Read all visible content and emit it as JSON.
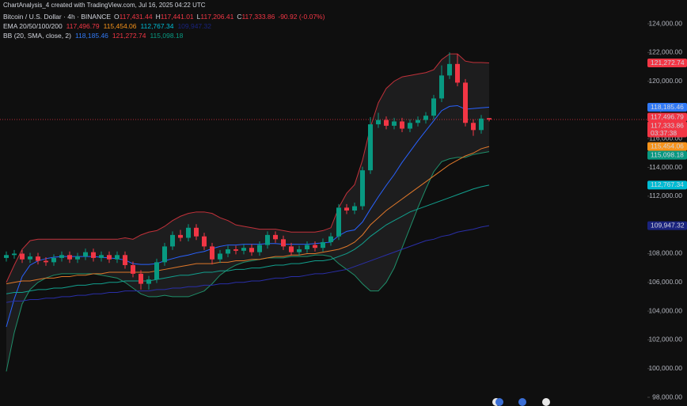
{
  "chart_data": {
    "type": "candlestick",
    "caption": "ChartAnalysis_4 created with TradingView.com, Jul 16, 2025 04:22 UTC",
    "title": "Bitcoin / U.S. Dollar · 4h · BINANCE",
    "ohlc_legend": [
      {
        "key": "O",
        "value": "117,431.44"
      },
      {
        "key": "H",
        "value": "117,441.01"
      },
      {
        "key": "L",
        "value": "117,206.41"
      },
      {
        "key": "C",
        "value": "117,333.86"
      }
    ],
    "change": "-90.92 (-0.07%)",
    "ema_label": "EMA 20/50/100/200",
    "bb_label": "BB (20, SMA, close, 2)",
    "up_color": "#089981",
    "down_color": "#f23645",
    "open": [
      107700,
      107900,
      108000,
      107600,
      107800,
      107500,
      107400,
      107700,
      107900,
      107600,
      107800,
      108100,
      107700,
      107900,
      107600,
      107900,
      107200,
      106600,
      105900,
      106200,
      107400,
      108500,
      109300,
      109100,
      109800,
      109200,
      108500,
      107600,
      108000,
      108300,
      108200,
      108400,
      108100,
      108600,
      109300,
      109000,
      108500,
      108100,
      108300,
      108600,
      108400,
      108800,
      109200,
      111200,
      111000,
      111300,
      113800,
      117000,
      117300,
      116900,
      117200,
      116700,
      117100,
      117300,
      117600,
      118800,
      120400,
      121200,
      119900,
      117100,
      116600,
      117431.44
    ],
    "high": [
      108150,
      108250,
      108250,
      108050,
      108050,
      107750,
      107950,
      108150,
      108150,
      108050,
      108350,
      108350,
      108150,
      108150,
      108150,
      108150,
      107450,
      106850,
      106450,
      107650,
      108750,
      109550,
      109650,
      110050,
      110050,
      109450,
      108750,
      108250,
      108550,
      108550,
      108650,
      108650,
      108850,
      109550,
      109550,
      109250,
      108750,
      108550,
      108850,
      108850,
      109050,
      109450,
      111450,
      111450,
      111550,
      114050,
      117500,
      117800,
      117550,
      117450,
      117450,
      117350,
      117550,
      117850,
      119050,
      121100,
      122000,
      121900,
      120150,
      117350,
      117650,
      117441.01
    ],
    "low": [
      107450,
      107650,
      107350,
      107350,
      107250,
      107150,
      107150,
      107450,
      107350,
      107350,
      107550,
      107450,
      107450,
      107350,
      107350,
      106950,
      106350,
      105500,
      105500,
      105950,
      107150,
      108250,
      108850,
      108850,
      108950,
      108250,
      107250,
      107350,
      107750,
      107950,
      107950,
      107850,
      107850,
      108350,
      108750,
      108250,
      107850,
      107850,
      108050,
      108150,
      108150,
      108550,
      108950,
      110750,
      110750,
      111050,
      113550,
      116750,
      116650,
      116650,
      116450,
      116450,
      116850,
      117050,
      117350,
      118550,
      120150,
      119650,
      116850,
      116200,
      116350,
      117206.41
    ],
    "close": [
      107900,
      108000,
      107600,
      107800,
      107500,
      107400,
      107700,
      107900,
      107600,
      107800,
      108100,
      107700,
      107900,
      107600,
      107900,
      107200,
      106600,
      105900,
      106200,
      107400,
      108500,
      109300,
      109100,
      109800,
      109200,
      108500,
      107600,
      108000,
      108300,
      108200,
      108400,
      108100,
      108600,
      109300,
      109000,
      108500,
      108100,
      108300,
      108600,
      108400,
      108800,
      109200,
      111200,
      111000,
      111300,
      113800,
      117000,
      117300,
      116900,
      117200,
      116700,
      117100,
      117300,
      117600,
      118800,
      120400,
      121200,
      119900,
      117100,
      116600,
      117400,
      117333.86
    ],
    "overlays": [
      {
        "color": "#c2313a",
        "values": [
          106000,
          107200,
          108300,
          108900,
          109000,
          109000,
          109000,
          109000,
          109000,
          109000,
          109000,
          109000,
          109000,
          109000,
          109000,
          109100,
          109000,
          109300,
          109500,
          109600,
          109900,
          110300,
          110600,
          110800,
          110900,
          110900,
          110800,
          110500,
          110300,
          110000,
          109900,
          109800,
          109700,
          109700,
          109700,
          109600,
          109500,
          109500,
          109500,
          109500,
          109600,
          109800,
          111200,
          112200,
          112800,
          114500,
          116800,
          118500,
          119500,
          120000,
          120300,
          120400,
          120500,
          120600,
          120800,
          121500,
          121900,
          121900,
          121400,
          121300,
          121300,
          121272.74
        ]
      },
      {
        "color": "#2962ff",
        "values": [
          102900,
          104850,
          106400,
          107200,
          107500,
          107650,
          107750,
          107800,
          107800,
          107800,
          107800,
          107800,
          107750,
          107700,
          107650,
          107550,
          107300,
          107250,
          107250,
          107300,
          107500,
          107650,
          107800,
          107900,
          108050,
          108150,
          108350,
          108500,
          108600,
          108600,
          108650,
          108650,
          108650,
          108700,
          108700,
          108650,
          108650,
          108650,
          108650,
          108700,
          108750,
          108800,
          109250,
          109550,
          109650,
          110200,
          111100,
          111950,
          112750,
          113500,
          114350,
          115100,
          115850,
          116550,
          117250,
          117950,
          118250,
          118300,
          118050,
          118100,
          118150,
          118185.46
        ]
      },
      {
        "color": "#1f8f6a",
        "values": [
          99800,
          102500,
          104500,
          105500,
          106000,
          106300,
          106500,
          106600,
          106600,
          106600,
          106600,
          106600,
          106500,
          106400,
          106300,
          106000,
          105600,
          105200,
          105000,
          105000,
          105100,
          105000,
          105000,
          105000,
          105200,
          105400,
          105900,
          106500,
          106900,
          107200,
          107400,
          107500,
          107600,
          107700,
          107700,
          107700,
          107800,
          107800,
          107800,
          107900,
          107900,
          107800,
          107300,
          106900,
          106500,
          105900,
          105400,
          105400,
          106000,
          107000,
          108400,
          109800,
          111200,
          112500,
          113700,
          114400,
          114600,
          114700,
          114700,
          114900,
          115000,
          115098.18
        ]
      },
      {
        "color": "#e0782a",
        "values": [
          105900,
          106000,
          106100,
          106100,
          106200,
          106300,
          106300,
          106400,
          106400,
          106500,
          106500,
          106600,
          106600,
          106700,
          106700,
          106700,
          106700,
          106700,
          106700,
          106800,
          106900,
          107000,
          107100,
          107200,
          107300,
          107300,
          107300,
          107400,
          107400,
          107500,
          107500,
          107600,
          107600,
          107700,
          107800,
          107800,
          107900,
          107900,
          108000,
          108000,
          108100,
          108200,
          108300,
          108500,
          108800,
          109300,
          110000,
          110500,
          111000,
          111400,
          111800,
          112200,
          112600,
          113000,
          113400,
          113800,
          114200,
          114500,
          114800,
          115000,
          115300,
          115454.06
        ]
      },
      {
        "color": "#12a08e",
        "values": [
          105200,
          105300,
          105300,
          105400,
          105500,
          105500,
          105600,
          105600,
          105700,
          105800,
          105800,
          105900,
          105900,
          106000,
          106000,
          106100,
          106100,
          106100,
          106100,
          106200,
          106300,
          106400,
          106500,
          106500,
          106600,
          106700,
          106700,
          106800,
          106800,
          106900,
          106900,
          107000,
          107000,
          107100,
          107200,
          107200,
          107300,
          107300,
          107400,
          107500,
          107500,
          107600,
          107800,
          108000,
          108300,
          108700,
          109200,
          109600,
          110000,
          110300,
          110600,
          110900,
          111100,
          111300,
          111500,
          111700,
          111900,
          112100,
          112300,
          112500,
          112650,
          112767.34
        ]
      },
      {
        "color": "#2a2fa8",
        "values": [
          104600,
          104700,
          104700,
          104800,
          104800,
          104900,
          104900,
          105000,
          105000,
          105100,
          105100,
          105200,
          105200,
          105300,
          105300,
          105400,
          105400,
          105400,
          105400,
          105500,
          105500,
          105600,
          105600,
          105700,
          105700,
          105800,
          105800,
          105900,
          105900,
          106000,
          106000,
          106100,
          106100,
          106200,
          106300,
          106300,
          106400,
          106400,
          106500,
          106600,
          106600,
          106700,
          106800,
          106900,
          107100,
          107300,
          107500,
          107700,
          107900,
          108100,
          108300,
          108500,
          108700,
          108900,
          109000,
          109200,
          109300,
          109500,
          109600,
          109700,
          109850,
          109947.32
        ]
      }
    ],
    "ylim": [
      98000,
      124000
    ],
    "yticks": [
      {
        "value": 98000,
        "label": "98,000.00"
      },
      {
        "value": 100000,
        "label": "100,000.00"
      },
      {
        "value": 102000,
        "label": "102,000.00"
      },
      {
        "value": 104000,
        "label": "104,000.00"
      },
      {
        "value": 106000,
        "label": "106,000.00"
      },
      {
        "value": 108000,
        "label": "108,000.00"
      },
      {
        "value": 110000,
        "label": "110,000.00"
      },
      {
        "value": 112000,
        "label": "112,000.00"
      },
      {
        "value": 114000,
        "label": "114,000.00"
      },
      {
        "value": 116000,
        "label": "116,000.00"
      },
      {
        "value": 118000,
        "label": "118,000.00"
      },
      {
        "value": 120000,
        "label": "120,000.00"
      },
      {
        "value": 122000,
        "label": "122,000.00"
      },
      {
        "value": 124000,
        "label": "124,000.00"
      }
    ],
    "price_tags": [
      {
        "value": 121272.74,
        "label": "121,272.74",
        "color": "#f23645"
      },
      {
        "value": 118185.46,
        "label": "118,185.46",
        "color": "#3179f5"
      },
      {
        "value": 117496.79,
        "label": "117,496.79",
        "color": "#f23645"
      },
      {
        "value": 117333.86,
        "label": "117,333.86",
        "countdown": "03:37:38",
        "color": "#f23645"
      },
      {
        "value": 115454.06,
        "label": "115,454.06",
        "color": "#f7931a"
      },
      {
        "value": 115098.18,
        "label": "115,098.18",
        "color": "#089981"
      },
      {
        "value": 112767.34,
        "label": "112,767.34",
        "color": "#00bcd4"
      },
      {
        "value": 109947.32,
        "label": "109,947.32",
        "color": "#1a237e"
      }
    ]
  }
}
